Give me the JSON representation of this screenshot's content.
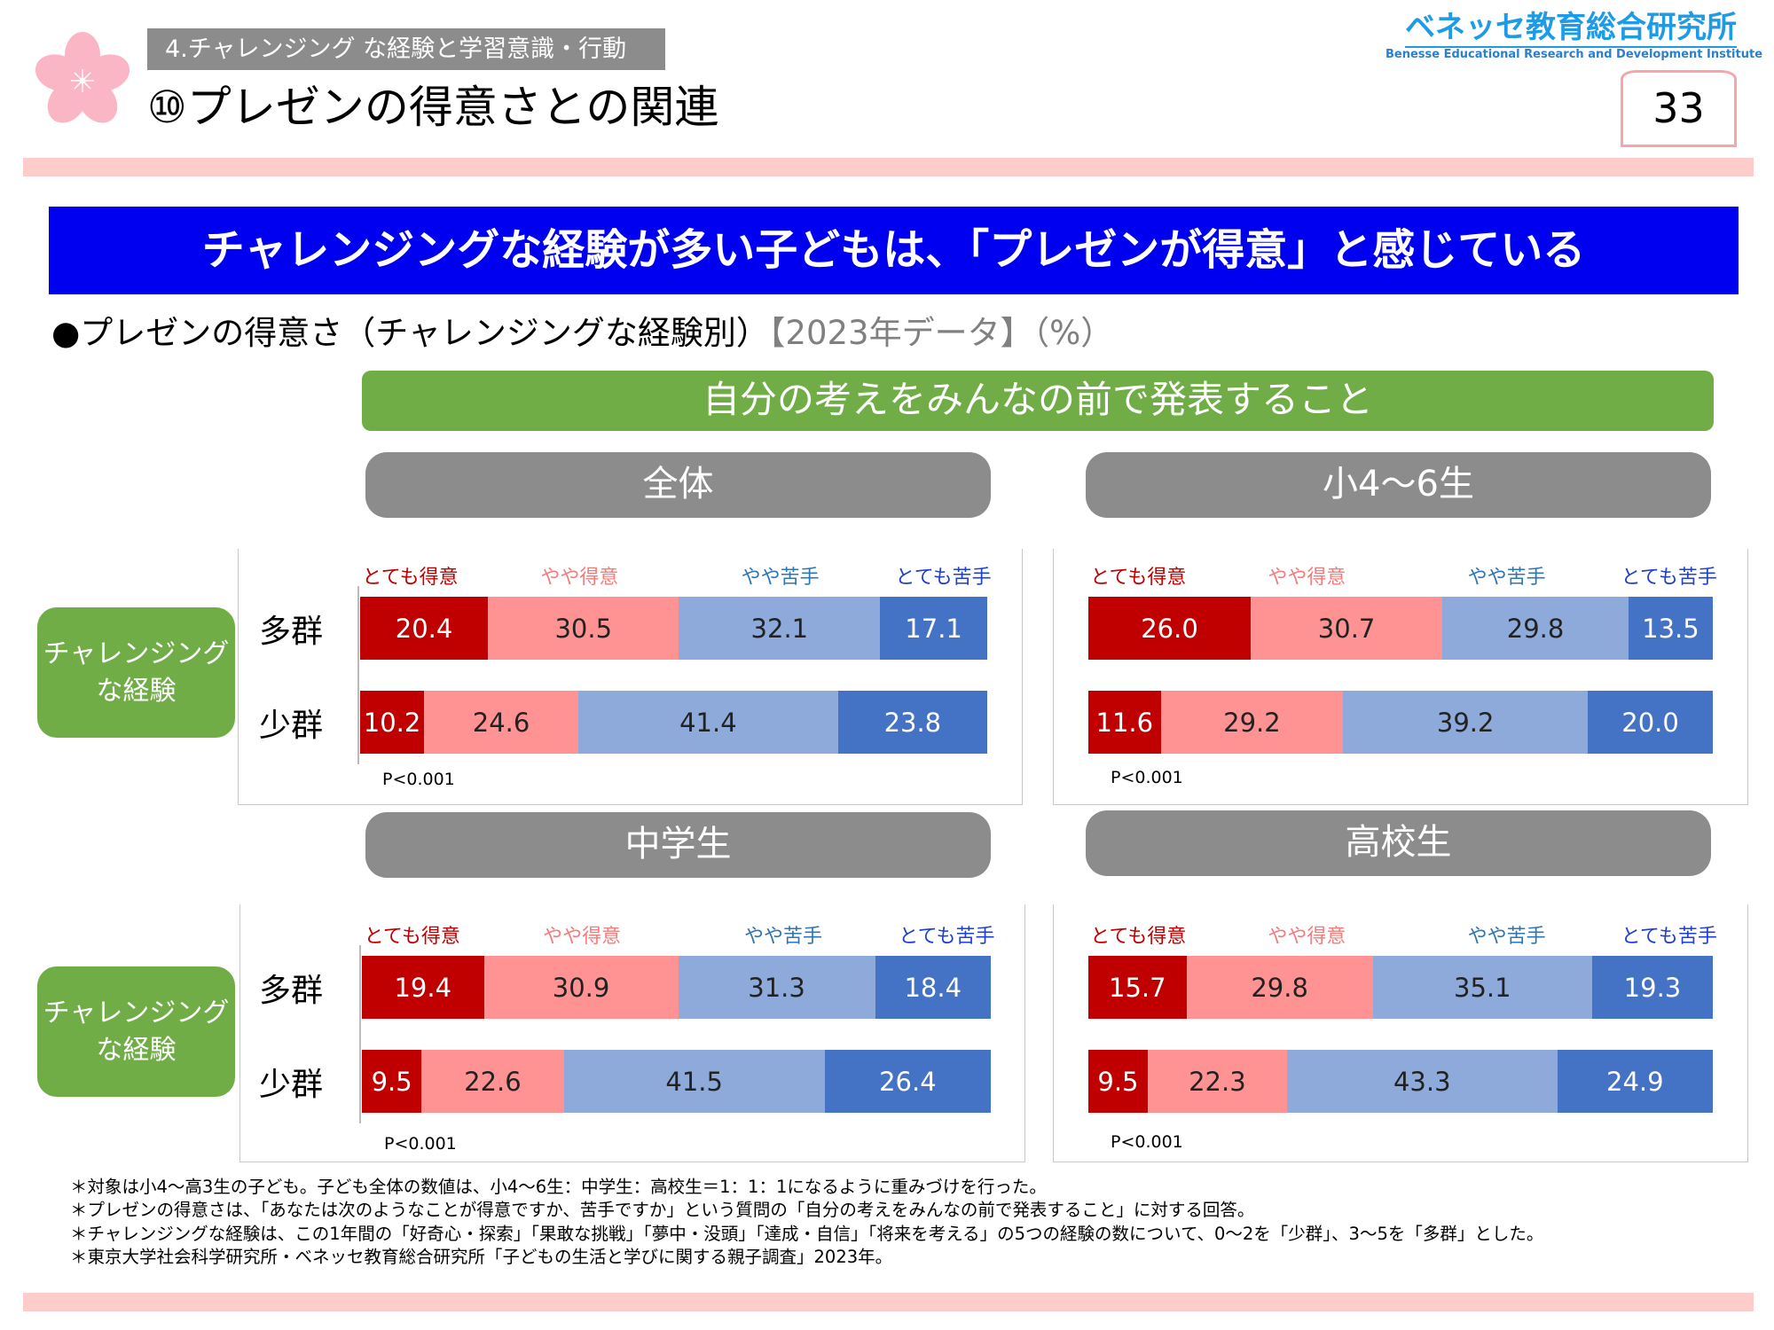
{
  "header": {
    "section_tag": "4.チャレンジング な経験と学習意識・行動",
    "title": "⑩プレゼンの得意さとの関連",
    "logo_jp": "ベネッセ教育総合研究所",
    "logo_en": "Benesse Educational Research and Development Institute",
    "page_number": "33"
  },
  "banner": "チャレンジングな経験が多い子どもは、「プレゼンが得意」と感じている",
  "subtitle": {
    "main": "●プレゼンの得意さ（チャレンジングな経験別）",
    "note": "【2023年データ】（%）"
  },
  "question": "自分の考えをみんなの前で発表すること",
  "group_label": "チャレンジング\nな経験",
  "colors": {
    "very_good": "#c00000",
    "somewhat_good": "#ff9393",
    "somewhat_bad": "#8eaadb",
    "very_bad": "#4472c4",
    "header_gray": "#8c8c8c",
    "green": "#70ad47",
    "banner_blue": "#0000f0"
  },
  "chart_data": [
    {
      "type": "bar",
      "stacked": "horizontal-100%",
      "title": "全体",
      "categories": [
        "多群",
        "少群"
      ],
      "series": [
        {
          "name": "とても得意",
          "values": [
            20.4,
            10.2
          ]
        },
        {
          "name": "やや得意",
          "values": [
            30.5,
            24.6
          ]
        },
        {
          "name": "やや苦手",
          "values": [
            32.1,
            41.4
          ]
        },
        {
          "name": "とても苦手",
          "values": [
            17.1,
            23.8
          ]
        }
      ],
      "annotation": "P<0.001"
    },
    {
      "type": "bar",
      "stacked": "horizontal-100%",
      "title": "小4～6生",
      "categories": [
        "多群",
        "少群"
      ],
      "series": [
        {
          "name": "とても得意",
          "values": [
            26.0,
            11.6
          ]
        },
        {
          "name": "やや得意",
          "values": [
            30.7,
            29.2
          ]
        },
        {
          "name": "やや苦手",
          "values": [
            29.8,
            39.2
          ]
        },
        {
          "name": "とても苦手",
          "values": [
            13.5,
            20.0
          ]
        }
      ],
      "annotation": "P<0.001"
    },
    {
      "type": "bar",
      "stacked": "horizontal-100%",
      "title": "中学生",
      "categories": [
        "多群",
        "少群"
      ],
      "series": [
        {
          "name": "とても得意",
          "values": [
            19.4,
            9.5
          ]
        },
        {
          "name": "やや得意",
          "values": [
            30.9,
            22.6
          ]
        },
        {
          "name": "やや苦手",
          "values": [
            31.3,
            41.5
          ]
        },
        {
          "name": "とても苦手",
          "values": [
            18.4,
            26.4
          ]
        }
      ],
      "annotation": "P<0.001"
    },
    {
      "type": "bar",
      "stacked": "horizontal-100%",
      "title": "高校生",
      "categories": [
        "多群",
        "少群"
      ],
      "series": [
        {
          "name": "とても得意",
          "values": [
            15.7,
            9.5
          ]
        },
        {
          "name": "やや得意",
          "values": [
            29.8,
            22.3
          ]
        },
        {
          "name": "やや苦手",
          "values": [
            35.1,
            43.3
          ]
        },
        {
          "name": "とても苦手",
          "values": [
            19.3,
            24.9
          ]
        }
      ],
      "annotation": "P<0.001"
    }
  ],
  "footnotes": [
    "＊対象は小4～高3生の子ども。子ども全体の数値は、小4～6生：中学生：高校生＝1：1：1になるように重みづけを行った。",
    "＊プレゼンの得意さは、「あなたは次のようなことが得意ですか、苦手ですか」という質問の「自分の考えをみんなの前で発表すること」に対する回答。",
    "＊チャレンジングな経験は、この1年間の「好奇心・探索」「果敢な挑戦」「夢中・没頭」「達成・自信」「将来を考える」の5つの経験の数について、0～2を「少群」、3～5を「多群」とした。",
    "＊東京大学社会科学研究所・ベネッセ教育総合研究所「子どもの生活と学びに関する親子調査」2023年。"
  ]
}
